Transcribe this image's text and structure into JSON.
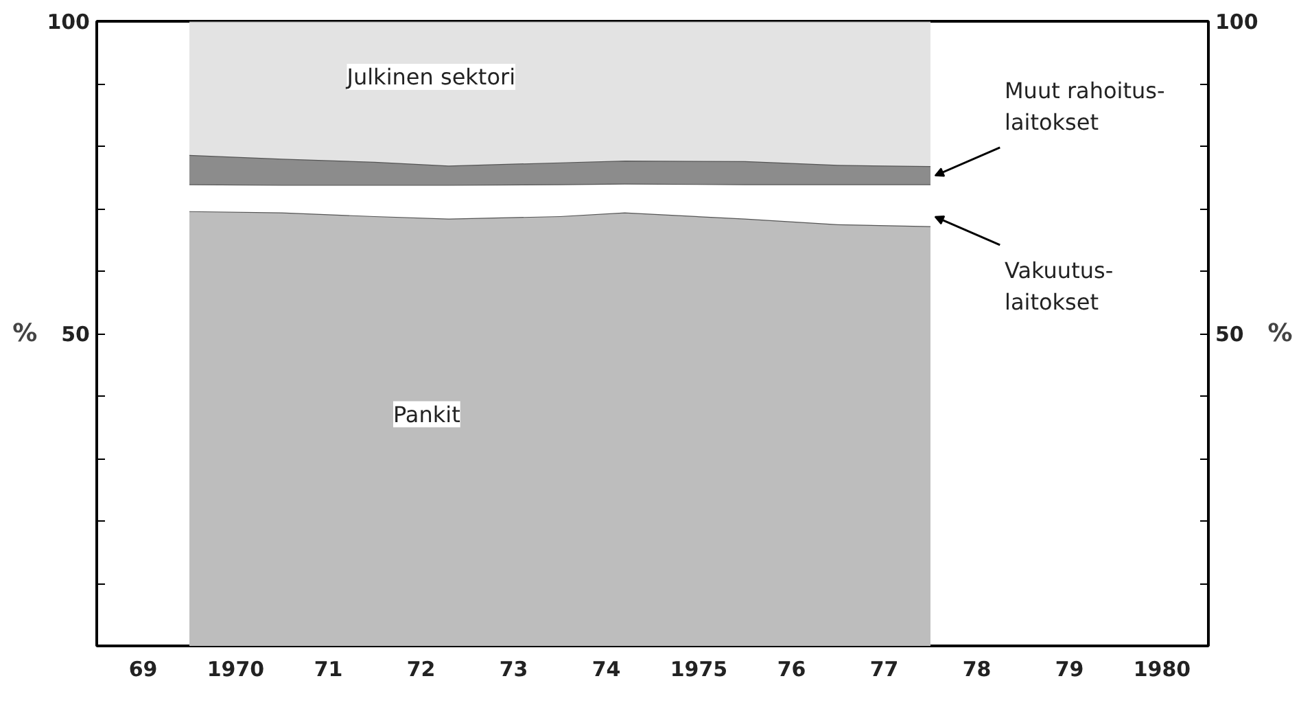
{
  "chart_data": {
    "type": "area",
    "stacked": true,
    "x": [
      1969.5,
      1970.5,
      1971.5,
      1972.3,
      1973.5,
      1974.2,
      1975.5,
      1976.5,
      1977.5
    ],
    "series": [
      {
        "name": "Pankit",
        "color": "#bdbdbd",
        "values": [
          69.6,
          69.4,
          68.8,
          68.4,
          68.8,
          69.4,
          68.4,
          67.5,
          67.2
        ]
      },
      {
        "name": "Vakuutus-\nlaitokset",
        "color": "#ffffff",
        "values": [
          4.3,
          4.4,
          5.0,
          5.4,
          5.1,
          4.6,
          5.5,
          6.4,
          6.7
        ]
      },
      {
        "name": "Muut rahoitus-\nlaitokset",
        "color": "#8c8c8c",
        "values": [
          4.7,
          4.2,
          3.7,
          3.1,
          3.5,
          3.7,
          3.7,
          3.1,
          2.9
        ]
      },
      {
        "name": "Julkinen sektori",
        "color": "#e3e3e3",
        "values": [
          21.4,
          22.0,
          22.5,
          23.1,
          22.6,
          22.3,
          22.4,
          23.0,
          23.2
        ]
      }
    ],
    "ylabel": "%",
    "y2label": "%",
    "xlim": [
      1968.5,
      1980.5
    ],
    "xticks": [
      {
        "value": 1969,
        "label": "69"
      },
      1970,
      {
        "value": 1971,
        "label": "71"
      },
      {
        "value": 1972,
        "label": "72"
      },
      {
        "value": 1973,
        "label": "73"
      },
      {
        "value": 1974,
        "label": "74"
      },
      1975,
      {
        "value": 1976,
        "label": "76"
      },
      {
        "value": 1977,
        "label": "77"
      },
      {
        "value": 1978,
        "label": "78"
      },
      {
        "value": 1979,
        "label": "79"
      },
      1980
    ],
    "ylim": [
      0,
      100
    ],
    "yticks": [
      {
        "value": 10,
        "label": null
      },
      {
        "value": 20,
        "label": null
      },
      {
        "value": 30,
        "label": null
      },
      {
        "value": 40,
        "label": null
      },
      50,
      {
        "value": 60,
        "label": null
      },
      {
        "value": 70,
        "label": null
      },
      {
        "value": 80,
        "label": null
      },
      {
        "value": 90,
        "label": null
      },
      100
    ],
    "y2lim": [
      0,
      100
    ],
    "y2ticks": [
      {
        "value": 10,
        "label": null
      },
      {
        "value": 20,
        "label": null
      },
      {
        "value": 30,
        "label": null
      },
      {
        "value": 40,
        "label": null
      },
      50,
      {
        "value": 60,
        "label": null
      },
      {
        "value": 70,
        "label": null
      },
      {
        "value": 80,
        "label": null
      },
      {
        "value": 90,
        "label": null
      },
      100
    ],
    "grid": false,
    "legend": false
  }
}
